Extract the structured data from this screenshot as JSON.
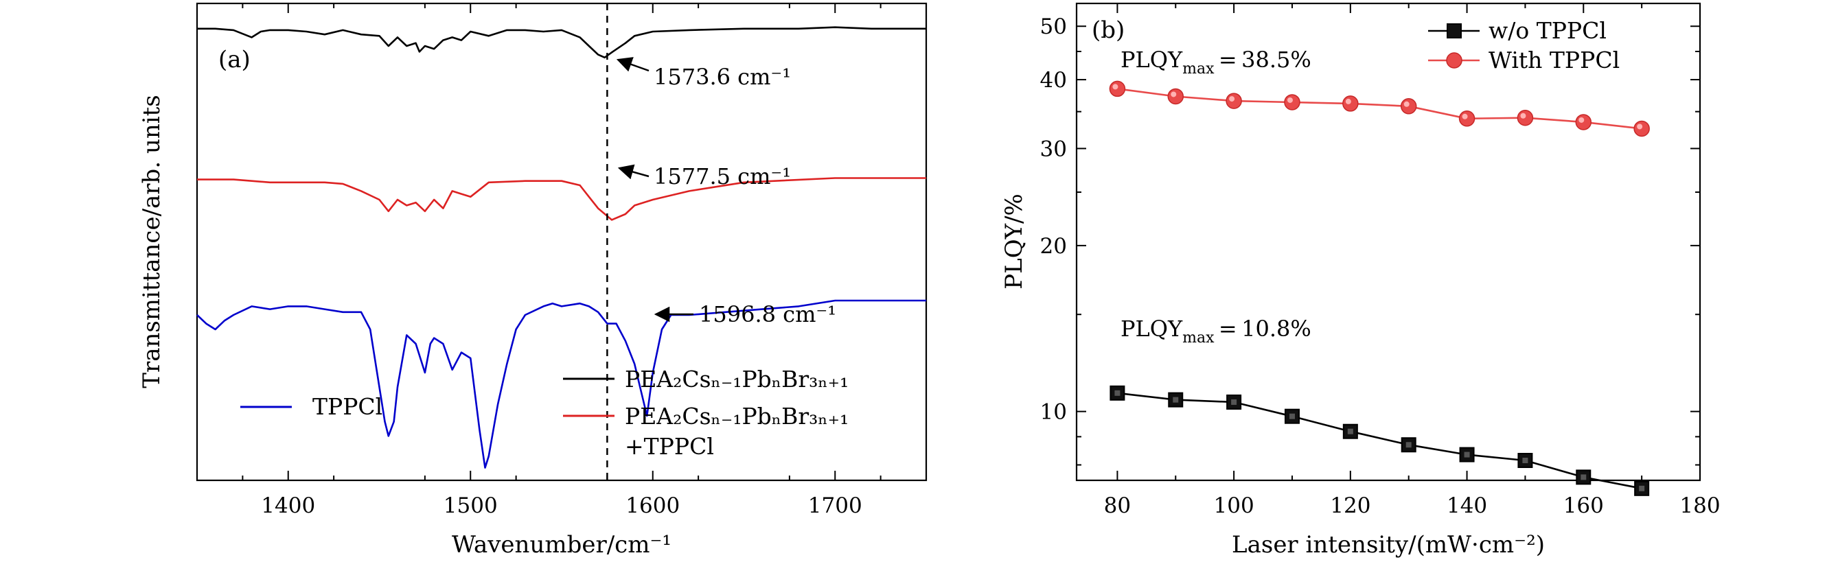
{
  "chart_data": [
    {
      "type": "line",
      "panel_label": "(a)",
      "xlabel": "Wavenumber/cm⁻¹",
      "ylabel": "Transmittance/arb. units",
      "xlim": [
        1350,
        1750
      ],
      "xticks": [
        "1400",
        "1500",
        "1600",
        "1700"
      ],
      "reference_line_x": 1575,
      "legend": {
        "left": [
          "TPPCl"
        ],
        "right": [
          "PEA₂Csₙ₋₁PbₙBr₃ₙ₊₁",
          "PEA₂Csₙ₋₁PbₙBr₃ₙ₊₁",
          "+TPPCl"
        ]
      },
      "annotations": [
        {
          "text": "1573.6 cm⁻¹",
          "x": 1573.6
        },
        {
          "text": "1577.5 cm⁻¹",
          "x": 1577.5
        },
        {
          "text": "1596.8 cm⁻¹",
          "x": 1596.8
        }
      ],
      "series": [
        {
          "color": "#000000",
          "x": [
            1350,
            1360,
            1370,
            1380,
            1385,
            1390,
            1400,
            1410,
            1420,
            1430,
            1440,
            1450,
            1455,
            1460,
            1465,
            1470,
            1472,
            1475,
            1480,
            1485,
            1490,
            1495,
            1500,
            1510,
            1520,
            1530,
            1540,
            1550,
            1560,
            1565,
            1570,
            1573.6,
            1578,
            1585,
            1590,
            1600,
            1620,
            1650,
            1680,
            1700,
            1720,
            1750
          ],
          "y": [
            0.96,
            0.96,
            0.955,
            0.93,
            0.95,
            0.955,
            0.955,
            0.95,
            0.94,
            0.955,
            0.94,
            0.935,
            0.9,
            0.93,
            0.9,
            0.91,
            0.88,
            0.9,
            0.89,
            0.92,
            0.93,
            0.92,
            0.95,
            0.935,
            0.955,
            0.955,
            0.95,
            0.955,
            0.93,
            0.9,
            0.87,
            0.86,
            0.88,
            0.91,
            0.935,
            0.95,
            0.955,
            0.96,
            0.96,
            0.965,
            0.96,
            0.96
          ]
        },
        {
          "color": "#dd2222",
          "x": [
            1350,
            1360,
            1370,
            1380,
            1390,
            1400,
            1420,
            1430,
            1440,
            1450,
            1455,
            1460,
            1465,
            1470,
            1475,
            1480,
            1485,
            1490,
            1495,
            1500,
            1510,
            1530,
            1550,
            1560,
            1565,
            1570,
            1577.5,
            1585,
            1590,
            1600,
            1620,
            1650,
            1700,
            1750
          ],
          "y": [
            0.77,
            0.77,
            0.77,
            0.765,
            0.76,
            0.76,
            0.76,
            0.755,
            0.73,
            0.7,
            0.66,
            0.7,
            0.68,
            0.69,
            0.66,
            0.7,
            0.67,
            0.73,
            0.72,
            0.71,
            0.76,
            0.765,
            0.765,
            0.75,
            0.71,
            0.67,
            0.63,
            0.65,
            0.68,
            0.7,
            0.73,
            0.76,
            0.775,
            0.775
          ]
        },
        {
          "color": "#0000cc",
          "x": [
            1350,
            1355,
            1360,
            1365,
            1370,
            1380,
            1390,
            1400,
            1410,
            1420,
            1430,
            1440,
            1445,
            1450,
            1453,
            1455,
            1458,
            1460,
            1465,
            1470,
            1475,
            1478,
            1480,
            1485,
            1490,
            1495,
            1500,
            1505,
            1508,
            1510,
            1515,
            1520,
            1525,
            1530,
            1540,
            1545,
            1550,
            1560,
            1565,
            1570,
            1575,
            1580,
            1585,
            1590,
            1593,
            1596.8,
            1600,
            1605,
            1610,
            1620,
            1640,
            1660,
            1680,
            1700,
            1720,
            1750
          ],
          "y": [
            0.55,
            0.52,
            0.5,
            0.53,
            0.55,
            0.58,
            0.57,
            0.58,
            0.58,
            0.57,
            0.56,
            0.56,
            0.5,
            0.3,
            0.18,
            0.13,
            0.18,
            0.3,
            0.48,
            0.45,
            0.35,
            0.45,
            0.47,
            0.45,
            0.36,
            0.42,
            0.4,
            0.15,
            0.02,
            0.06,
            0.24,
            0.38,
            0.5,
            0.55,
            0.58,
            0.59,
            0.58,
            0.59,
            0.58,
            0.56,
            0.52,
            0.52,
            0.46,
            0.38,
            0.3,
            0.2,
            0.35,
            0.5,
            0.55,
            0.55,
            0.56,
            0.57,
            0.58,
            0.6,
            0.6,
            0.6
          ]
        }
      ]
    },
    {
      "type": "line",
      "panel_label": "(b)",
      "xlabel": "Laser intensity/(mW·cm⁻²)",
      "ylabel": "PLQY/%",
      "xlim": [
        73,
        180
      ],
      "ylim": [
        7.5,
        55
      ],
      "yscale": "log",
      "xticks": [
        "80",
        "100",
        "120",
        "140",
        "160",
        "180"
      ],
      "yticks": [
        "10",
        "20",
        "30",
        "40",
        "50"
      ],
      "legend_position": "top-right",
      "annotations": [
        {
          "text": "PLQY",
          "sub": "max",
          "rest": " = 38.5%",
          "color": "#dd2222"
        },
        {
          "text": "PLQY",
          "sub": "max",
          "rest": " = 10.8%",
          "color": "#000000"
        }
      ],
      "series": [
        {
          "name": "w/o TPPCl",
          "color": "#000000",
          "marker": "square",
          "x": [
            80,
            90,
            100,
            110,
            120,
            130,
            140,
            150,
            160,
            170
          ],
          "y": [
            10.8,
            10.5,
            10.4,
            9.8,
            9.2,
            8.7,
            8.35,
            8.15,
            7.6,
            7.25
          ]
        },
        {
          "name": "With TPPCl",
          "color": "#e84a4a",
          "marker": "circle",
          "x": [
            80,
            90,
            100,
            110,
            120,
            130,
            140,
            150,
            160,
            170
          ],
          "y": [
            38.5,
            37.3,
            36.6,
            36.4,
            36.2,
            35.8,
            34.0,
            34.1,
            33.5,
            32.6
          ]
        }
      ]
    }
  ]
}
